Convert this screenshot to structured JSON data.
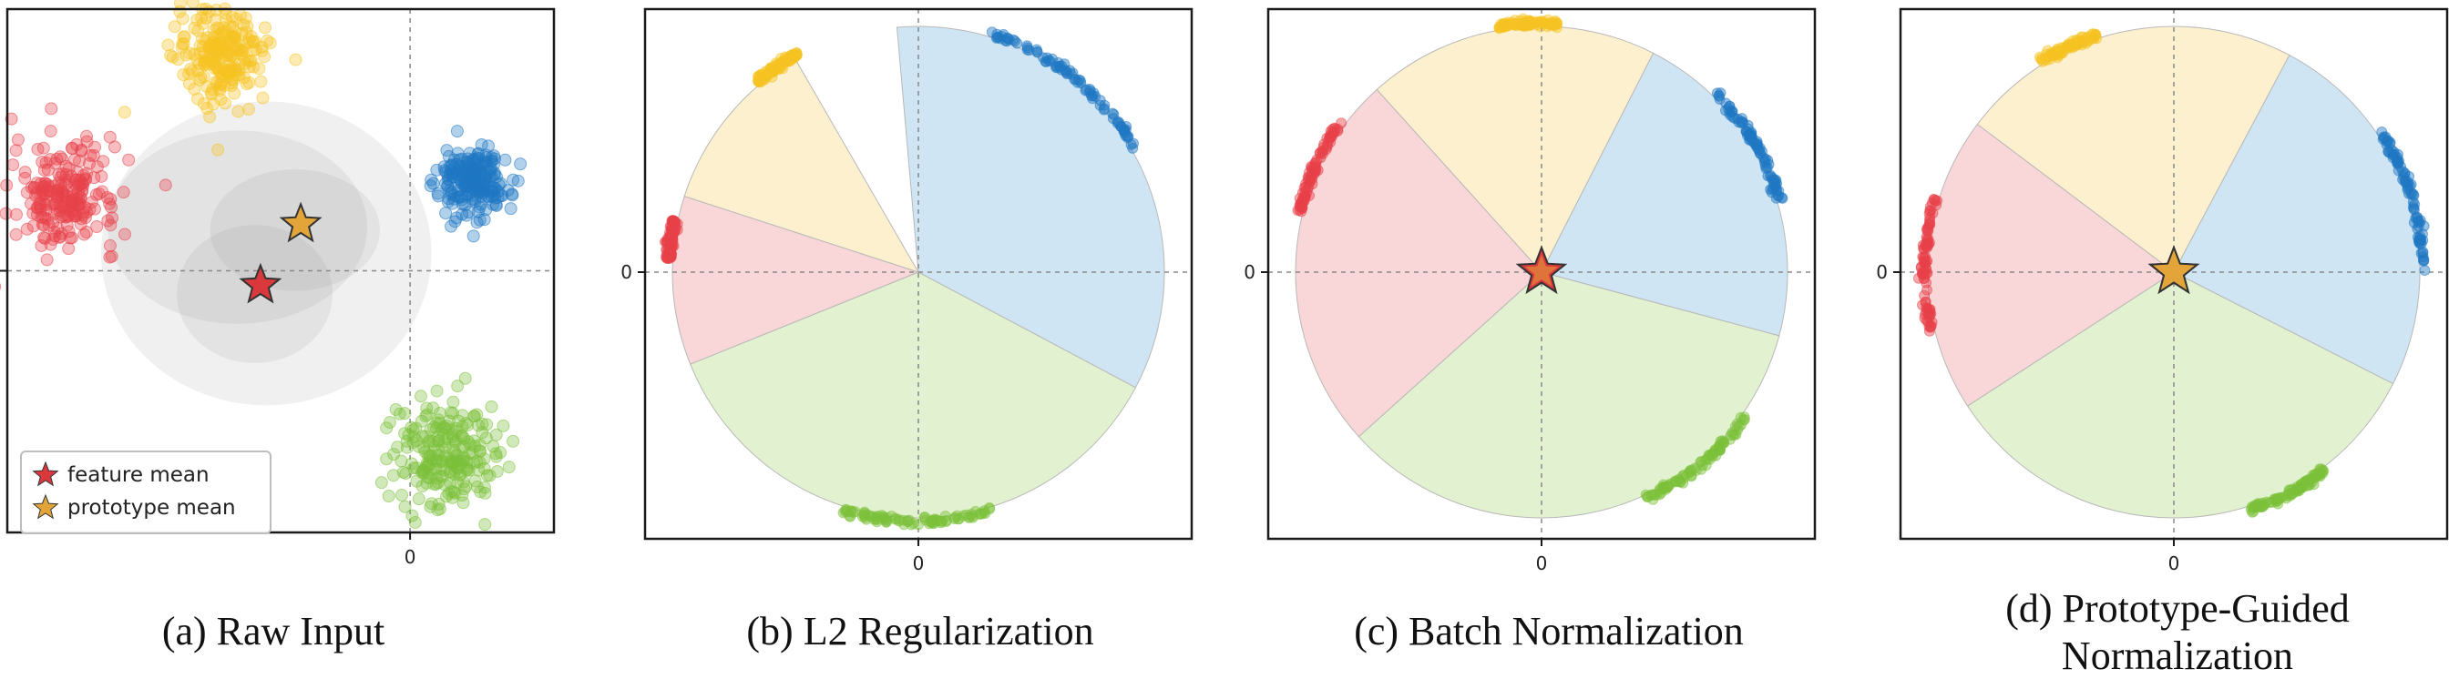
{
  "colors": {
    "red": "#e8414a",
    "blue": "#1f77c4",
    "yellow": "#f6c423",
    "green": "#7cc13a",
    "red_fill": "#f9d7d8",
    "blue_fill": "#cfe5f4",
    "yellow_fill": "#fdf0cf",
    "green_fill": "#e2f1cf",
    "feature_mean": "#d9383c",
    "prototype_mean": "#e3a53a",
    "frame": "#1a1a1a",
    "crosshair": "#888888"
  },
  "chart_data": [
    {
      "panel": "a",
      "type": "scatter",
      "caption": "(a) Raw Input",
      "xlabel": "",
      "ylabel": "",
      "x_ticks": [
        "0"
      ],
      "y_ticks": [
        ""
      ],
      "grid": "dashed crosshair at origin",
      "legend_position": "bottom-left",
      "xlim": [
        -14,
        5
      ],
      "ylim": [
        -9,
        9
      ],
      "clusters": [
        {
          "color": "red",
          "center": [
            -12,
            2.6
          ],
          "spread": 0.9
        },
        {
          "color": "yellow",
          "center": [
            -6.5,
            7.4
          ],
          "spread": 0.8
        },
        {
          "color": "blue",
          "center": [
            2.2,
            3.1
          ],
          "spread": 0.6
        },
        {
          "color": "green",
          "center": [
            1.2,
            -6.3
          ],
          "spread": 0.9
        }
      ],
      "gaussians": [
        {
          "center": [
            -5.0,
            0.6
          ],
          "radii": [
            7.0,
            5.5
          ]
        },
        {
          "center": [
            -6.0,
            1.5
          ],
          "radii": [
            5.5,
            3.5
          ]
        },
        {
          "center": [
            -4.0,
            1.4
          ],
          "radii": [
            3.6,
            2.2
          ]
        },
        {
          "center": [
            -5.4,
            -0.8
          ],
          "radii": [
            3.3,
            2.5
          ]
        }
      ],
      "feature_mean": [
        -5.2,
        -0.5
      ],
      "prototype_mean": [
        -3.8,
        1.6
      ],
      "legend": [
        {
          "marker": "feature_mean",
          "label": "feature mean"
        },
        {
          "marker": "prototype_mean",
          "label": "prototype mean"
        }
      ]
    },
    {
      "panel": "b",
      "type": "polar-sector",
      "caption": "(b) L2 Regularization",
      "x_ticks": [
        "0"
      ],
      "y_ticks": [
        "0"
      ],
      "sectors_deg": [
        {
          "color": "blue",
          "start": -28,
          "end": 95
        },
        {
          "color": "green",
          "start": -158,
          "end": -28
        },
        {
          "color": "red",
          "start": 162,
          "end": 202
        },
        {
          "color": "yellow",
          "start": 120,
          "end": 162
        }
      ],
      "arc_points_deg": [
        {
          "color": "blue",
          "start": 30,
          "end": 73
        },
        {
          "color": "yellow",
          "start": 119,
          "end": 130
        },
        {
          "color": "red",
          "start": 168,
          "end": 177
        },
        {
          "color": "green",
          "start": 252,
          "end": 287
        }
      ],
      "feature_mean": null,
      "prototype_mean": null
    },
    {
      "panel": "c",
      "type": "polar-sector",
      "caption": "(c) Batch Normalization",
      "x_ticks": [
        "0"
      ],
      "y_ticks": [
        "0"
      ],
      "sectors_deg": [
        {
          "color": "blue",
          "start": -15,
          "end": 63
        },
        {
          "color": "green",
          "start": -138,
          "end": -15
        },
        {
          "color": "red",
          "start": 132,
          "end": 222
        },
        {
          "color": "yellow",
          "start": 63,
          "end": 132
        }
      ],
      "arc_points_deg": [
        {
          "color": "blue",
          "start": 17,
          "end": 46
        },
        {
          "color": "yellow",
          "start": 86,
          "end": 100
        },
        {
          "color": "red",
          "start": 142,
          "end": 166
        },
        {
          "color": "green",
          "start": 295,
          "end": 325
        }
      ],
      "feature_mean": [
        0,
        0
      ],
      "prototype_mean": [
        0,
        0
      ]
    },
    {
      "panel": "d",
      "type": "polar-sector",
      "caption": "(d) Prototype-Guided\nNormalization",
      "x_ticks": [
        "0"
      ],
      "y_ticks": [
        "0"
      ],
      "sectors_deg": [
        {
          "color": "blue",
          "start": -27,
          "end": 62
        },
        {
          "color": "green",
          "start": -147,
          "end": -27
        },
        {
          "color": "red",
          "start": 143,
          "end": 213
        },
        {
          "color": "yellow",
          "start": 62,
          "end": 143
        }
      ],
      "arc_points_deg": [
        {
          "color": "blue",
          "start": 0,
          "end": 34
        },
        {
          "color": "yellow",
          "start": 108,
          "end": 122
        },
        {
          "color": "red",
          "start": 163,
          "end": 194
        },
        {
          "color": "green",
          "start": 288,
          "end": 307
        }
      ],
      "feature_mean": [
        0,
        0
      ],
      "prototype_mean": [
        0,
        0
      ]
    }
  ]
}
